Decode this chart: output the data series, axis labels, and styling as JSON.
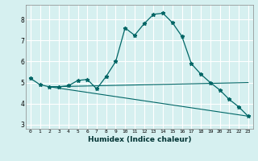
{
  "xlabel": "Humidex (Indice chaleur)",
  "bg_color": "#d6f0f0",
  "grid_color": "#ffffff",
  "line_color": "#006666",
  "xlim": [
    -0.5,
    23.5
  ],
  "ylim": [
    2.8,
    8.7
  ],
  "yticks": [
    3,
    4,
    5,
    6,
    7,
    8
  ],
  "xticks": [
    0,
    1,
    2,
    3,
    4,
    5,
    6,
    7,
    8,
    9,
    10,
    11,
    12,
    13,
    14,
    15,
    16,
    17,
    18,
    19,
    20,
    21,
    22,
    23
  ],
  "main_x": [
    0,
    1,
    2,
    3,
    4,
    5,
    6,
    7,
    8,
    9,
    10,
    11,
    12,
    13,
    14,
    15,
    16,
    17,
    18,
    19,
    20,
    21,
    22,
    23
  ],
  "main_y": [
    5.2,
    4.9,
    4.8,
    4.8,
    4.85,
    5.1,
    5.15,
    4.7,
    5.3,
    6.0,
    7.6,
    7.25,
    7.8,
    8.25,
    8.3,
    7.85,
    7.2,
    5.9,
    5.4,
    5.0,
    4.65,
    4.2,
    3.85,
    3.4
  ],
  "line2_x": [
    2,
    23
  ],
  "line2_y": [
    4.8,
    5.0
  ],
  "line3_x": [
    2,
    23
  ],
  "line3_y": [
    4.8,
    3.4
  ]
}
